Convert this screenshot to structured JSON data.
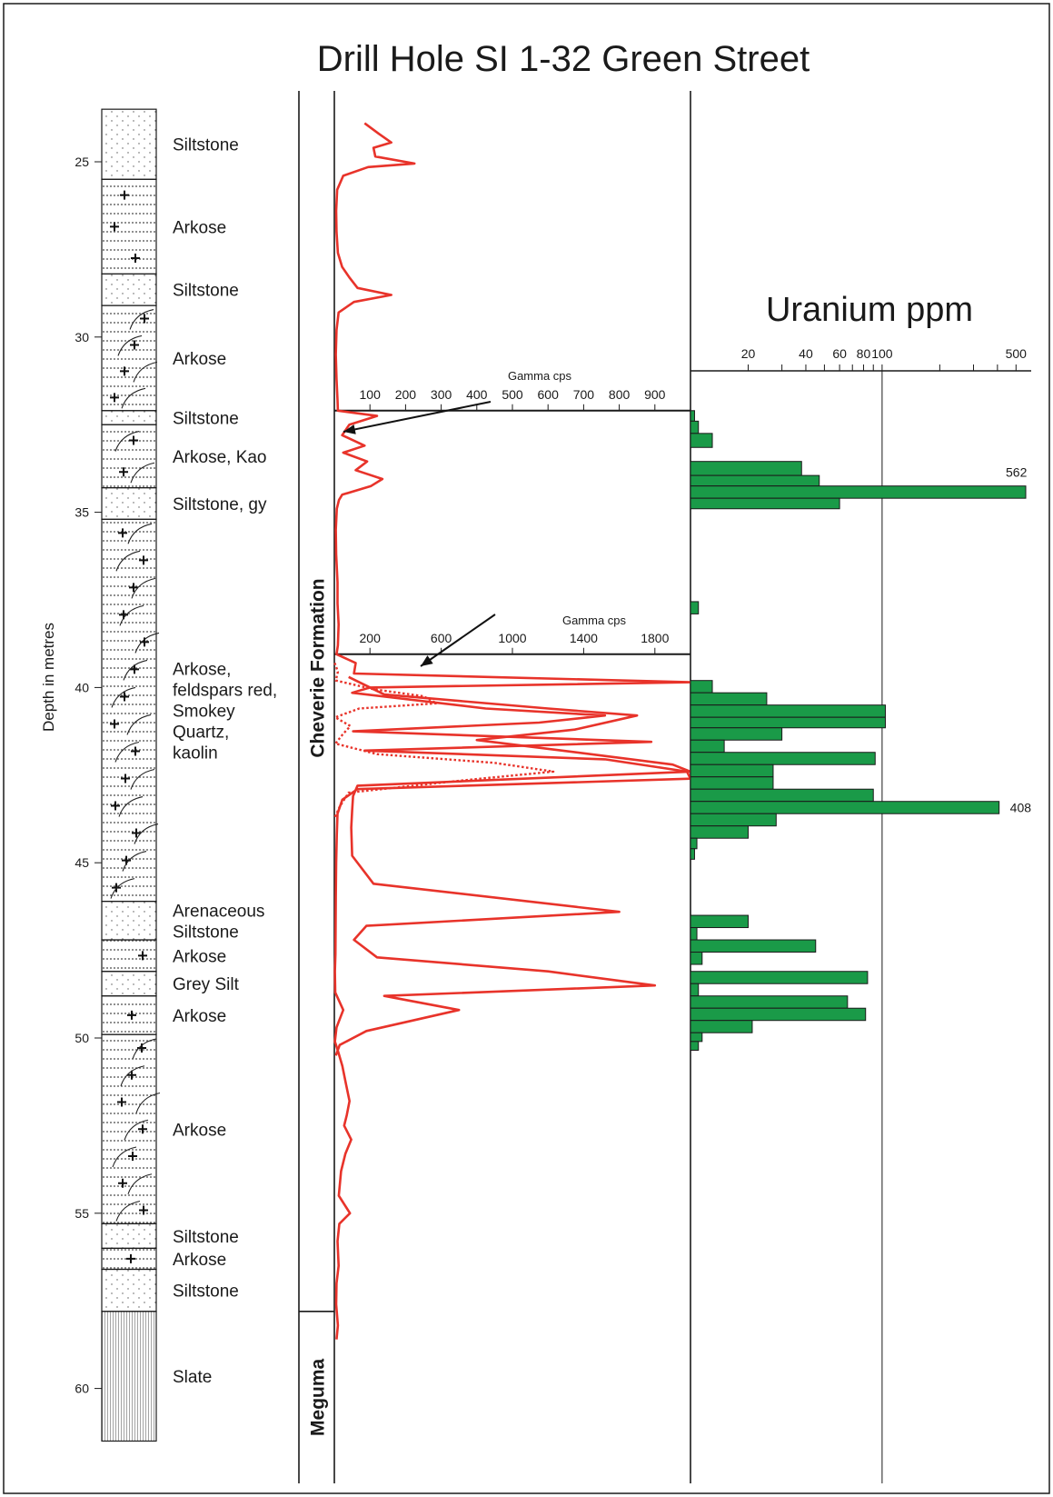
{
  "title": "Drill Hole SI 1-32 Green Street",
  "colors": {
    "gamma_line": "#e8332a",
    "uranium_bar": "#1a9a48",
    "frame": "#1a1a1a"
  },
  "chart_data": [
    {
      "type": "table",
      "name": "lithology-column",
      "ylabel": "Depth in metres",
      "depth_ticks": [
        25,
        30,
        35,
        40,
        45,
        50,
        55,
        60
      ],
      "y_range_m": [
        23.5,
        61.5
      ],
      "units": [
        {
          "top": 23.5,
          "bottom": 25.5,
          "label": "Siltstone",
          "pattern": "silt"
        },
        {
          "top": 25.5,
          "bottom": 28.2,
          "label": "Arkose",
          "pattern": "arkose"
        },
        {
          "top": 28.2,
          "bottom": 29.1,
          "label": "Siltstone",
          "pattern": "silt"
        },
        {
          "top": 29.1,
          "bottom": 32.1,
          "label": "Arkose",
          "pattern": "arkose-cross"
        },
        {
          "top": 32.1,
          "bottom": 32.5,
          "label": "Siltstone",
          "pattern": "silt"
        },
        {
          "top": 32.5,
          "bottom": 34.3,
          "label": "Arkose, Kao",
          "pattern": "arkose-cross"
        },
        {
          "top": 34.3,
          "bottom": 35.2,
          "label": "Siltstone, gy",
          "pattern": "silt"
        },
        {
          "top": 35.2,
          "bottom": 46.1,
          "label": "Arkose,\nfeldspars red,\nSmokey\nQuartz,\nkaolin",
          "pattern": "arkose-cross"
        },
        {
          "top": 46.1,
          "bottom": 47.2,
          "label": "Arenaceous\nSiltstone",
          "pattern": "silt"
        },
        {
          "top": 47.2,
          "bottom": 48.1,
          "label": "Arkose",
          "pattern": "arkose"
        },
        {
          "top": 48.1,
          "bottom": 48.8,
          "label": "Grey Silt",
          "pattern": "silt"
        },
        {
          "top": 48.8,
          "bottom": 49.9,
          "label": "Arkose",
          "pattern": "arkose"
        },
        {
          "top": 49.9,
          "bottom": 55.3,
          "label": "Arkose",
          "pattern": "arkose-cross"
        },
        {
          "top": 55.3,
          "bottom": 56.0,
          "label": "Siltstone",
          "pattern": "silt"
        },
        {
          "top": 56.0,
          "bottom": 56.6,
          "label": "Arkose",
          "pattern": "arkose"
        },
        {
          "top": 56.6,
          "bottom": 57.8,
          "label": "Siltstone",
          "pattern": "silt"
        },
        {
          "top": 57.8,
          "bottom": 61.5,
          "label": "Slate",
          "pattern": "slate"
        }
      ],
      "formations": [
        {
          "name": "Cheverie Formation",
          "top": 23.5,
          "bottom": 57.8
        },
        {
          "name": "Meguma",
          "top": 57.8,
          "bottom": 61.5
        }
      ]
    },
    {
      "type": "line",
      "name": "gamma-log",
      "series": [
        {
          "role": "main",
          "points": [
            [
              23.9,
              85
            ],
            [
              24.2,
              125
            ],
            [
              24.45,
              160
            ],
            [
              24.6,
              110
            ],
            [
              24.85,
              115
            ],
            [
              25.05,
              225
            ],
            [
              25.15,
              95
            ],
            [
              25.4,
              25
            ],
            [
              25.8,
              8
            ],
            [
              26.4,
              5
            ],
            [
              27.0,
              6
            ],
            [
              27.6,
              10
            ],
            [
              28.0,
              22
            ],
            [
              28.3,
              42
            ],
            [
              28.6,
              65
            ],
            [
              28.8,
              160
            ],
            [
              29.0,
              55
            ],
            [
              29.3,
              12
            ],
            [
              29.8,
              6
            ],
            [
              30.5,
              4
            ],
            [
              31.2,
              6
            ],
            [
              31.8,
              9
            ],
            [
              32.1,
              10
            ],
            [
              32.25,
              120
            ],
            [
              32.5,
              42
            ],
            [
              32.8,
              22
            ],
            [
              33.1,
              85
            ],
            [
              33.3,
              25
            ],
            [
              33.55,
              92
            ],
            [
              33.8,
              60
            ],
            [
              34.05,
              135
            ],
            [
              34.25,
              103
            ],
            [
              34.5,
              22
            ],
            [
              34.65,
              13
            ],
            [
              34.9,
              7
            ],
            [
              35.5,
              4
            ],
            [
              36.2,
              5
            ],
            [
              37.0,
              9
            ],
            [
              37.6,
              9
            ],
            [
              38.2,
              12
            ],
            [
              38.8,
              10
            ],
            [
              39.05,
              12
            ],
            [
              39.3,
              120
            ],
            [
              39.6,
              110
            ],
            [
              39.85,
              2000
            ],
            [
              40.0,
              200
            ],
            [
              40.15,
              100
            ],
            [
              40.6,
              850
            ],
            [
              40.8,
              1520
            ],
            [
              41.0,
              1150
            ],
            [
              41.25,
              105
            ],
            [
              41.55,
              1780
            ],
            [
              41.8,
              170
            ],
            [
              42.05,
              1520
            ],
            [
              42.4,
              1980
            ],
            [
              42.6,
              2000
            ],
            [
              42.9,
              130
            ],
            [
              43.2,
              45
            ],
            [
              43.6,
              18
            ],
            [
              44.2,
              14
            ],
            [
              45.0,
              10
            ],
            [
              46.0,
              8
            ],
            [
              46.8,
              7
            ],
            [
              47.6,
              6
            ],
            [
              48.1,
              3
            ],
            [
              48.7,
              5
            ],
            [
              49.2,
              50
            ],
            [
              49.7,
              12
            ],
            [
              50.1,
              3
            ],
            [
              50.4,
              22
            ],
            [
              50.8,
              45
            ],
            [
              51.3,
              65
            ],
            [
              51.8,
              85
            ],
            [
              52.2,
              70
            ],
            [
              52.5,
              55
            ],
            [
              52.9,
              95
            ],
            [
              53.3,
              62
            ],
            [
              53.8,
              38
            ],
            [
              54.5,
              25
            ],
            [
              55.0,
              88
            ],
            [
              55.3,
              28
            ],
            [
              55.8,
              18
            ],
            [
              56.5,
              24
            ],
            [
              57.0,
              12
            ],
            [
              57.6,
              10
            ],
            [
              58.2,
              20
            ],
            [
              58.6,
              12
            ]
          ]
        },
        {
          "role": "second",
          "points": [
            [
              39.7,
              80
            ],
            [
              40.2,
              280
            ],
            [
              40.6,
              1200
            ],
            [
              40.8,
              1700
            ],
            [
              41.2,
              1350
            ],
            [
              41.5,
              800
            ],
            [
              41.8,
              1280
            ],
            [
              42.2,
              1900
            ],
            [
              42.4,
              2000
            ],
            [
              42.8,
              130
            ],
            [
              43.1,
              105
            ],
            [
              43.5,
              100
            ],
            [
              44.0,
              95
            ],
            [
              44.8,
              100
            ],
            [
              45.6,
              220
            ],
            [
              46.4,
              1600
            ],
            [
              46.8,
              180
            ],
            [
              47.2,
              110
            ],
            [
              47.7,
              240
            ],
            [
              48.1,
              1200
            ],
            [
              48.5,
              1800
            ],
            [
              48.8,
              280
            ],
            [
              49.2,
              700
            ],
            [
              49.8,
              180
            ],
            [
              50.2,
              30
            ],
            [
              50.5,
              8
            ]
          ]
        },
        {
          "role": "dotted",
          "points": [
            [
              39.3,
              2
            ],
            [
              39.55,
              20
            ],
            [
              39.8,
              8
            ],
            [
              40.05,
              220
            ],
            [
              40.25,
              500
            ],
            [
              40.45,
              575
            ],
            [
              40.6,
              140
            ],
            [
              40.85,
              5
            ],
            [
              41.1,
              90
            ],
            [
              41.35,
              45
            ],
            [
              41.6,
              6
            ],
            [
              41.9,
              240
            ],
            [
              42.15,
              900
            ],
            [
              42.4,
              1230
            ],
            [
              42.65,
              720
            ],
            [
              43.0,
              80
            ],
            [
              43.4,
              30
            ],
            [
              43.7,
              3
            ]
          ]
        }
      ],
      "axes": [
        {
          "label": "Gamma cps",
          "ticks": [
            100,
            200,
            300,
            400,
            500,
            600,
            700,
            800,
            900
          ],
          "range": [
            0,
            1000
          ],
          "depth_range": [
            32.1,
            39.05
          ]
        },
        {
          "label": "Gamma cps",
          "ticks": [
            200,
            600,
            1000,
            1400,
            1800
          ],
          "range": [
            0,
            2000
          ],
          "depth_range": [
            39.05,
            43.8
          ]
        }
      ]
    },
    {
      "type": "bar",
      "name": "uranium-bars",
      "title": "Uranium  ppm",
      "xscale": "log",
      "xlim": [
        10,
        600
      ],
      "ticks": [
        20,
        40,
        60,
        80,
        100,
        500
      ],
      "reference_line": 100,
      "bars": [
        {
          "top": 32.1,
          "bottom": 32.4,
          "value": 10.5
        },
        {
          "top": 32.4,
          "bottom": 32.75,
          "value": 11
        },
        {
          "top": 32.75,
          "bottom": 33.15,
          "value": 13
        },
        {
          "top": 33.55,
          "bottom": 33.95,
          "value": 38
        },
        {
          "top": 33.95,
          "bottom": 34.25,
          "value": 47
        },
        {
          "top": 34.25,
          "bottom": 34.6,
          "value": 562,
          "label": "562"
        },
        {
          "top": 34.6,
          "bottom": 34.9,
          "value": 60
        },
        {
          "top": 37.55,
          "bottom": 37.9,
          "value": 11
        },
        {
          "top": 39.8,
          "bottom": 40.15,
          "value": 13
        },
        {
          "top": 40.15,
          "bottom": 40.5,
          "value": 25
        },
        {
          "top": 40.5,
          "bottom": 40.85,
          "value": 104
        },
        {
          "top": 40.85,
          "bottom": 41.15,
          "value": 104
        },
        {
          "top": 41.15,
          "bottom": 41.5,
          "value": 30
        },
        {
          "top": 41.5,
          "bottom": 41.85,
          "value": 15
        },
        {
          "top": 41.85,
          "bottom": 42.2,
          "value": 92
        },
        {
          "top": 42.2,
          "bottom": 42.55,
          "value": 27
        },
        {
          "top": 42.55,
          "bottom": 42.9,
          "value": 27
        },
        {
          "top": 42.9,
          "bottom": 43.25,
          "value": 90
        },
        {
          "top": 43.25,
          "bottom": 43.6,
          "value": 408,
          "label": "408"
        },
        {
          "top": 43.6,
          "bottom": 43.95,
          "value": 28
        },
        {
          "top": 43.95,
          "bottom": 44.3,
          "value": 20
        },
        {
          "top": 44.3,
          "bottom": 44.6,
          "value": 10.8
        },
        {
          "top": 44.6,
          "bottom": 44.9,
          "value": 10.5
        },
        {
          "top": 46.5,
          "bottom": 46.85,
          "value": 20
        },
        {
          "top": 46.85,
          "bottom": 47.2,
          "value": 10.8
        },
        {
          "top": 47.2,
          "bottom": 47.55,
          "value": 45
        },
        {
          "top": 47.55,
          "bottom": 47.9,
          "value": 11.5
        },
        {
          "top": 48.1,
          "bottom": 48.45,
          "value": 84
        },
        {
          "top": 48.45,
          "bottom": 48.8,
          "value": 11
        },
        {
          "top": 48.8,
          "bottom": 49.15,
          "value": 66
        },
        {
          "top": 49.15,
          "bottom": 49.5,
          "value": 82
        },
        {
          "top": 49.5,
          "bottom": 49.85,
          "value": 21
        },
        {
          "top": 49.85,
          "bottom": 50.1,
          "value": 11.5
        },
        {
          "top": 50.1,
          "bottom": 50.35,
          "value": 11
        }
      ]
    }
  ]
}
